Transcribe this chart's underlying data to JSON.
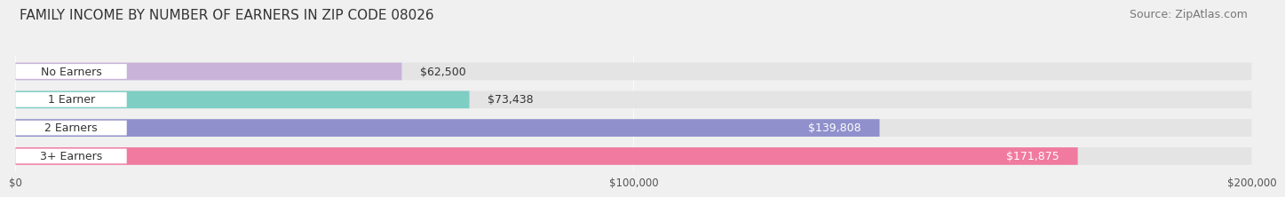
{
  "title": "FAMILY INCOME BY NUMBER OF EARNERS IN ZIP CODE 08026",
  "source": "Source: ZipAtlas.com",
  "categories": [
    "No Earners",
    "1 Earner",
    "2 Earners",
    "3+ Earners"
  ],
  "values": [
    62500,
    73438,
    139808,
    171875
  ],
  "labels": [
    "$62,500",
    "$73,438",
    "$139,808",
    "$171,875"
  ],
  "bar_colors": [
    "#c9b3d9",
    "#7ecec4",
    "#9090cc",
    "#f07aa0"
  ],
  "label_colors": [
    "#333333",
    "#333333",
    "#ffffff",
    "#ffffff"
  ],
  "xlim": [
    0,
    200000
  ],
  "xtick_values": [
    0,
    100000,
    200000
  ],
  "xtick_labels": [
    "$0",
    "$100,000",
    "$200,000"
  ],
  "background_color": "#f0f0f0",
  "bar_background_color": "#e4e4e4",
  "title_fontsize": 11,
  "source_fontsize": 9,
  "label_fontsize": 9,
  "category_fontsize": 9
}
